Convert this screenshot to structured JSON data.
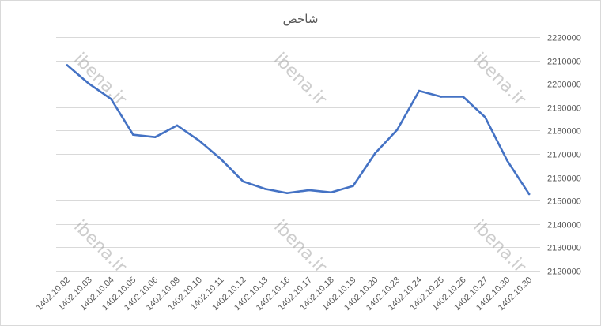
{
  "watermark": "ibena.ir",
  "chart_data": {
    "type": "line",
    "title": "شاخص",
    "xlabel": "",
    "ylabel": "",
    "ylim": [
      2120000,
      2220000
    ],
    "yticks": [
      2120000,
      2130000,
      2140000,
      2150000,
      2160000,
      2170000,
      2180000,
      2190000,
      2200000,
      2210000,
      2220000
    ],
    "grid": true,
    "y_axis_position": "right",
    "colors": {
      "series": "#4472c4",
      "grid": "#d9d9d9",
      "text": "#595959"
    },
    "categories": [
      "1402.10.02",
      "1402.10.03",
      "1402.10.04",
      "1402.10.05",
      "1402.10.06",
      "1402.10.09",
      "1402.10.10",
      "1402.10.11",
      "1402.10.12",
      "1402.10.13",
      "1402.10.16",
      "1402.10.17",
      "1402.10.18",
      "1402.10.19",
      "1402.10.20",
      "1402.10.23",
      "1402.10.24",
      "1402.10.25",
      "1402.10.26",
      "1402.10.27",
      "1402.10.30",
      "1402.10.30"
    ],
    "series": [
      {
        "values": [
          2208000,
          2200000,
          2193500,
          2178200,
          2177200,
          2182200,
          2175700,
          2167700,
          2158200,
          2155000,
          2153200,
          2154500,
          2153500,
          2156300,
          2170300,
          2180300,
          2197000,
          2194500,
          2194500,
          2185700,
          2167200,
          2152800
        ]
      }
    ]
  }
}
